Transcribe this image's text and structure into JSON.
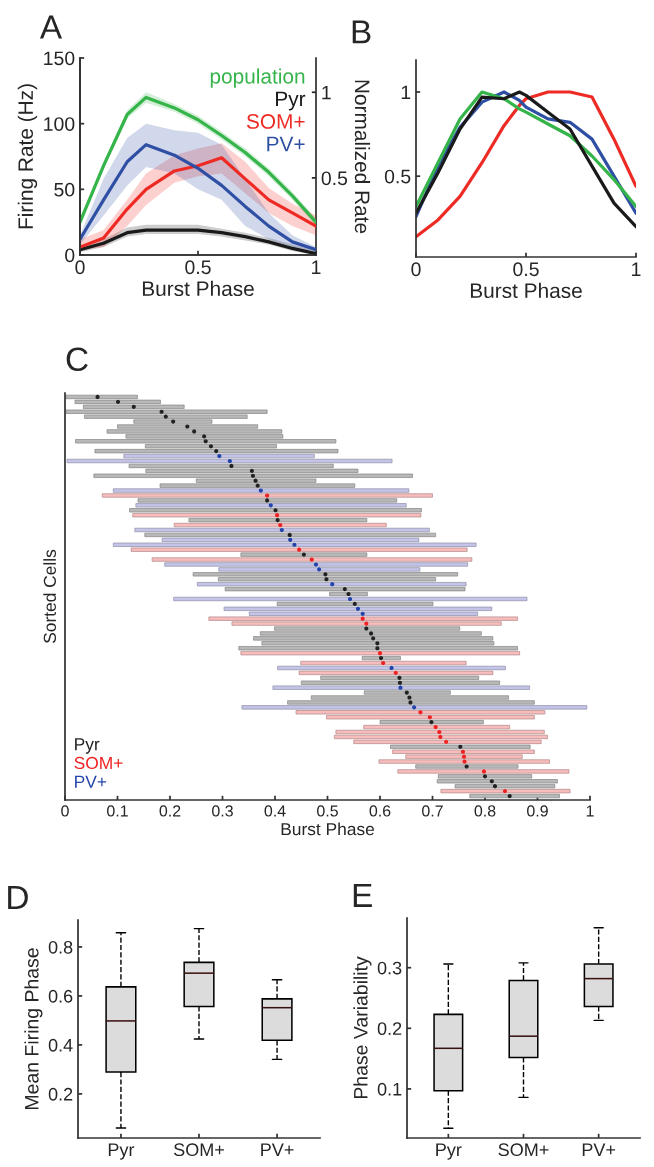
{
  "chart_data": [
    {
      "type": "line",
      "title": "A",
      "xlabel": "Burst Phase",
      "ylabel": "Firing Rate (Hz)",
      "y2label": "Normalized Rate",
      "xlim": [
        0,
        1
      ],
      "xticks": [
        0,
        0.5,
        1
      ],
      "ylim": [
        0,
        150
      ],
      "yticks": [
        0,
        50,
        100,
        150
      ],
      "y2lim": [
        0.05,
        1.2
      ],
      "y2ticks": [
        0.5,
        1
      ],
      "legend": "top right",
      "x": [
        0,
        0.1,
        0.2,
        0.28,
        0.4,
        0.5,
        0.6,
        0.7,
        0.8,
        0.9,
        1
      ],
      "series": [
        {
          "name": "population",
          "color": "#35b44a",
          "values": [
            25,
            68,
            107,
            120,
            112,
            103,
            91,
            78,
            63,
            45,
            25
          ],
          "lower": [
            22,
            65,
            104,
            116,
            109,
            100,
            88,
            75,
            60,
            42,
            22
          ],
          "upper": [
            28,
            71,
            110,
            124,
            115,
            106,
            94,
            81,
            66,
            48,
            28
          ]
        },
        {
          "name": "Pyr",
          "color": "#1a1a1a",
          "values": [
            4,
            9,
            17,
            19,
            19,
            19,
            17,
            14,
            10,
            5,
            1
          ],
          "lower": [
            2,
            6,
            14,
            16,
            16,
            16,
            14,
            11,
            8,
            3,
            0
          ],
          "upper": [
            7,
            12,
            21,
            23,
            23,
            23,
            20,
            17,
            13,
            8,
            3
          ]
        },
        {
          "name": "SOM+",
          "color": "#ee2a24",
          "values": [
            6,
            13,
            35,
            50,
            64,
            68,
            74,
            58,
            42,
            32,
            22
          ],
          "lower": [
            4,
            6,
            22,
            38,
            55,
            60,
            62,
            47,
            32,
            22,
            15
          ],
          "upper": [
            12,
            19,
            42,
            62,
            76,
            81,
            85,
            71,
            51,
            39,
            30
          ]
        },
        {
          "name": "PV+",
          "color": "#2e4fa3",
          "values": [
            12,
            42,
            71,
            84,
            76,
            66,
            53,
            37,
            22,
            10,
            4
          ],
          "lower": [
            8,
            30,
            53,
            67,
            62,
            50,
            42,
            22,
            12,
            5,
            3
          ],
          "upper": [
            15,
            58,
            89,
            100,
            95,
            93,
            84,
            58,
            32,
            15,
            6
          ]
        }
      ]
    },
    {
      "type": "line",
      "title": "B",
      "xlabel": "Burst Phase",
      "xlim": [
        0,
        1
      ],
      "xticks": [
        0,
        0.5,
        1
      ],
      "ylim": [
        0.02,
        1.19
      ],
      "yticks": [
        0.5,
        1
      ],
      "x": [
        0,
        0.1,
        0.2,
        0.3,
        0.4,
        0.47,
        0.5,
        0.6,
        0.7,
        0.8,
        0.9,
        1
      ],
      "series": [
        {
          "color": "#ee2a24",
          "values": [
            0.14,
            0.24,
            0.38,
            0.58,
            0.8,
            0.92,
            0.96,
            1,
            1,
            0.97,
            0.72,
            0.44
          ]
        },
        {
          "color": "#2e4fa3",
          "values": [
            0.26,
            0.56,
            0.79,
            0.94,
            1,
            0.95,
            0.91,
            0.84,
            0.82,
            0.72,
            0.5,
            0.28
          ]
        },
        {
          "color": "#35b44a",
          "values": [
            0.32,
            0.58,
            0.84,
            1,
            0.96,
            0.9,
            0.88,
            0.81,
            0.74,
            0.62,
            0.48,
            0.32
          ]
        },
        {
          "color": "#1a1a1a",
          "values": [
            0.28,
            0.52,
            0.78,
            0.97,
            0.96,
            1,
            0.98,
            0.88,
            0.78,
            0.56,
            0.34,
            0.2
          ]
        }
      ]
    },
    {
      "type": "bar",
      "orientation": "horizontal",
      "title": "C",
      "xlabel": "Burst Phase",
      "ylabel": "Sorted Cells",
      "xlim": [
        0,
        1
      ],
      "xticks": [
        0,
        0.1,
        0.2,
        0.3,
        0.4,
        0.5,
        0.6,
        0.7,
        0.8,
        0.9,
        1
      ],
      "tick_labels": "x",
      "legend": "bottom left",
      "marker": "circle",
      "categories": [
        null,
        null,
        null,
        null,
        null,
        null,
        null,
        null,
        null,
        null,
        null,
        null,
        null,
        null,
        null,
        null,
        null,
        null,
        null,
        null,
        null,
        null,
        null,
        null,
        null,
        null,
        null,
        null,
        null,
        null,
        null,
        null,
        null,
        null,
        null,
        null,
        null,
        null,
        null,
        null,
        null,
        null,
        null,
        null,
        null,
        null,
        null,
        null,
        null,
        null,
        null,
        null,
        null,
        null,
        null,
        null,
        null,
        null,
        null,
        null,
        null,
        null,
        null,
        null,
        null,
        null,
        null,
        null,
        null,
        null,
        null,
        null,
        null,
        null,
        null,
        null,
        null,
        null,
        null,
        null,
        null,
        null
      ],
      "series": [
        {
          "type": "bar",
          "base": [
            0.002,
            0.019,
            0.035,
            0.002,
            0.037,
            0.131,
            0.1,
            0.08,
            0.116,
            0.02,
            0.153,
            0.057,
            0.112,
            0.004,
            0.122,
            0.154,
            0.055,
            0.25,
            0.181,
            0.092,
            0.071,
            0.139,
            0.135,
            0.123,
            0.129,
            0.236,
            0.208,
            0.133,
            0.152,
            0.185,
            0.092,
            0.126,
            0.335,
            0.166,
            0.19,
            0.293,
            0.244,
            0.292,
            0.252,
            0.305,
            0.504,
            0.207,
            0.404,
            0.303,
            0.351,
            0.274,
            0.318,
            0.399,
            0.372,
            0.359,
            0.375,
            0.331,
            0.335,
            0.566,
            0.449,
            0.405,
            0.446,
            0.487,
            0.45,
            0.396,
            0.57,
            0.469,
            0.424,
            0.337,
            0.44,
            0.498,
            0.6,
            0.569,
            0.516,
            0.513,
            0.55,
            0.62,
            0.624,
            0.649,
            0.598,
            0.668,
            0.634,
            0.711,
            0.709,
            0.743,
            0.716,
            0.771
          ],
          "values": [
            0.136,
            0.163,
            0.192,
            0.383,
            0.31,
            0.149,
            0.267,
            0.333,
            0.299,
            0.496,
            0.25,
            0.463,
            0.363,
            0.619,
            0.389,
            0.404,
            0.607,
            0.228,
            0.371,
            0.563,
            0.629,
            0.493,
            0.515,
            0.556,
            0.549,
            0.339,
            0.404,
            0.561,
            0.554,
            0.489,
            0.691,
            0.64,
            0.24,
            0.609,
            0.577,
            0.383,
            0.504,
            0.414,
            0.512,
            0.457,
            0.072,
            0.673,
            0.297,
            0.51,
            0.435,
            0.588,
            0.513,
            0.353,
            0.421,
            0.456,
            0.442,
            0.531,
            0.531,
            0.073,
            0.315,
            0.434,
            0.369,
            0.301,
            0.378,
            0.489,
            0.164,
            0.376,
            0.47,
            0.657,
            0.474,
            0.396,
            0.197,
            0.278,
            0.397,
            0.406,
            0.357,
            0.266,
            0.27,
            0.222,
            0.325,
            0.195,
            0.326,
            0.178,
            0.229,
            0.19,
            0.246,
            0.171
          ],
          "colors": [
            "#b8b8b8",
            "#b8b8b8",
            "#b8b8b8",
            "#b8b8b8",
            "#b8b8b8",
            "#b8b8b8",
            "#b8b8b8",
            "#b8b8b8",
            "#b8b8b8",
            "#b8b8b8",
            "#b8b8b8",
            "#b8b8b8",
            "#c4c4e8",
            "#c4c4e8",
            "#b8b8b8",
            "#b8b8b8",
            "#b8b8b8",
            "#b8b8b8",
            "#b8b8b8",
            "#c4c4e8",
            "#f7bcbc",
            "#b8b8b8",
            "#c4c4e8",
            "#b8b8b8",
            "#f7bcbc",
            "#b8b8b8",
            "#f7bcbc",
            "#c4c4e8",
            "#b8b8b8",
            "#c4c4e8",
            "#c4c4e8",
            "#f7bcbc",
            "#b8b8b8",
            "#f7bcbc",
            "#c4c4e8",
            "#c4c4e8",
            "#b8b8b8",
            "#b8b8b8",
            "#c4c4e8",
            "#b8b8b8",
            "#b8b8b8",
            "#c4c4e8",
            "#b8b8b8",
            "#c4c4e8",
            "#c4c4e8",
            "#f7bcbc",
            "#f7bcbc",
            "#b8b8b8",
            "#b8b8b8",
            "#b8b8b8",
            "#b8b8b8",
            "#b8b8b8",
            "#f7bcbc",
            "#b8b8b8",
            "#f7bcbc",
            "#c4c4e8",
            "#f7bcbc",
            "#b8b8b8",
            "#b8b8b8",
            "#c4c4e8",
            "#b8b8b8",
            "#b8b8b8",
            "#b8b8b8",
            "#c4c4e8",
            "#f7bcbc",
            "#f7bcbc",
            "#b8b8b8",
            "#f7bcbc",
            "#f7bcbc",
            "#f7bcbc",
            "#f7bcbc",
            "#b8b8b8",
            "#f7bcbc",
            "#f7bcbc",
            "#f7bcbc",
            "#b8b8b8",
            "#f7bcbc",
            "#b8b8b8",
            "#b8b8b8",
            "#b8b8b8",
            "#f7bcbc",
            "#b8b8b8"
          ]
        },
        {
          "type": "scatter",
          "name": "Pyr",
          "color": "#222222",
          "values": [
            0.062,
            0.101,
            0.131,
            0.184,
            0.192,
            0.206,
            0.233,
            0.246,
            0.265,
            0.268,
            0.278,
            0.288,
            null,
            null,
            0.317,
            0.356,
            0.358,
            0.363,
            0.367,
            null,
            null,
            0.385,
            null,
            0.401,
            null,
            0.405,
            null,
            null,
            0.428,
            null,
            null,
            null,
            0.455,
            null,
            null,
            null,
            0.496,
            0.498,
            null,
            0.533,
            0.54,
            null,
            0.552,
            null,
            null,
            null,
            null,
            0.574,
            0.583,
            0.587,
            0.595,
            0.595,
            null,
            0.602,
            null,
            null,
            null,
            0.637,
            0.638,
            null,
            0.651,
            0.656,
            0.658,
            null,
            null,
            null,
            0.698,
            null,
            null,
            null,
            null,
            0.753,
            null,
            null,
            null,
            0.765,
            null,
            0.8,
            0.813,
            0.819,
            null,
            0.847
          ]
        },
        {
          "type": "scatter",
          "name": "SOM+",
          "color": "#ee2222",
          "values": [
            null,
            null,
            null,
            null,
            null,
            null,
            null,
            null,
            null,
            null,
            null,
            null,
            null,
            null,
            null,
            null,
            null,
            null,
            null,
            null,
            0.385,
            null,
            null,
            null,
            0.404,
            null,
            0.41,
            null,
            null,
            null,
            null,
            0.446,
            null,
            0.47,
            null,
            null,
            null,
            null,
            null,
            null,
            null,
            null,
            null,
            null,
            null,
            0.567,
            0.574,
            null,
            null,
            null,
            null,
            null,
            0.6,
            null,
            0.606,
            null,
            0.63,
            null,
            null,
            null,
            null,
            null,
            null,
            null,
            0.677,
            0.695,
            null,
            0.706,
            0.713,
            0.715,
            0.726,
            null,
            0.758,
            0.76,
            0.761,
            null,
            0.798,
            null,
            null,
            null,
            0.838,
            null
          ]
        },
        {
          "type": "scatter",
          "name": "PV+",
          "color": "#2244aa",
          "values": [
            null,
            null,
            null,
            null,
            null,
            null,
            null,
            null,
            null,
            null,
            null,
            null,
            0.294,
            0.314,
            null,
            null,
            null,
            null,
            null,
            0.373,
            null,
            null,
            0.392,
            null,
            null,
            null,
            null,
            0.413,
            null,
            0.429,
            0.437,
            null,
            null,
            null,
            0.478,
            0.484,
            null,
            null,
            0.509,
            null,
            null,
            0.543,
            null,
            0.558,
            0.567,
            null,
            null,
            null,
            null,
            null,
            null,
            null,
            null,
            null,
            null,
            0.622,
            null,
            null,
            null,
            0.639,
            null,
            null,
            null,
            0.665,
            null,
            null,
            null,
            null,
            null,
            null,
            null,
            null,
            null,
            null,
            null,
            null,
            null,
            null,
            null,
            null,
            null,
            null
          ]
        }
      ]
    },
    {
      "type": "box",
      "title": "D",
      "ylabel": "Mean Firing Phase",
      "ylim": [
        0.02,
        0.91
      ],
      "yticks": [
        0.2,
        0.4,
        0.6,
        0.8
      ],
      "categories": [
        "Pyr",
        "SOM+",
        "PV+"
      ],
      "color": "#dcdcdc",
      "line_style": "dashed",
      "boxes": [
        {
          "low": 0.061,
          "q1": 0.289,
          "median": 0.498,
          "q3": 0.637,
          "high": 0.858
        },
        {
          "low": 0.424,
          "q1": 0.557,
          "median": 0.693,
          "q3": 0.737,
          "high": 0.875
        },
        {
          "low": 0.341,
          "q1": 0.419,
          "median": 0.552,
          "q3": 0.588,
          "high": 0.666
        }
      ]
    },
    {
      "type": "box",
      "title": "E",
      "ylabel": "Phase Variability",
      "ylim": [
        0.019,
        0.382
      ],
      "yticks": [
        0.1,
        0.2,
        0.3
      ],
      "categories": [
        "Pyr",
        "SOM+",
        "PV+"
      ],
      "color": "#dcdcdc",
      "line_style": "dashed",
      "boxes": [
        {
          "low": 0.035,
          "q1": 0.097,
          "median": 0.167,
          "q3": 0.223,
          "high": 0.306
        },
        {
          "low": 0.086,
          "q1": 0.152,
          "median": 0.187,
          "q3": 0.279,
          "high": 0.308
        },
        {
          "low": 0.213,
          "q1": 0.236,
          "median": 0.282,
          "q3": 0.306,
          "high": 0.366
        }
      ]
    }
  ]
}
